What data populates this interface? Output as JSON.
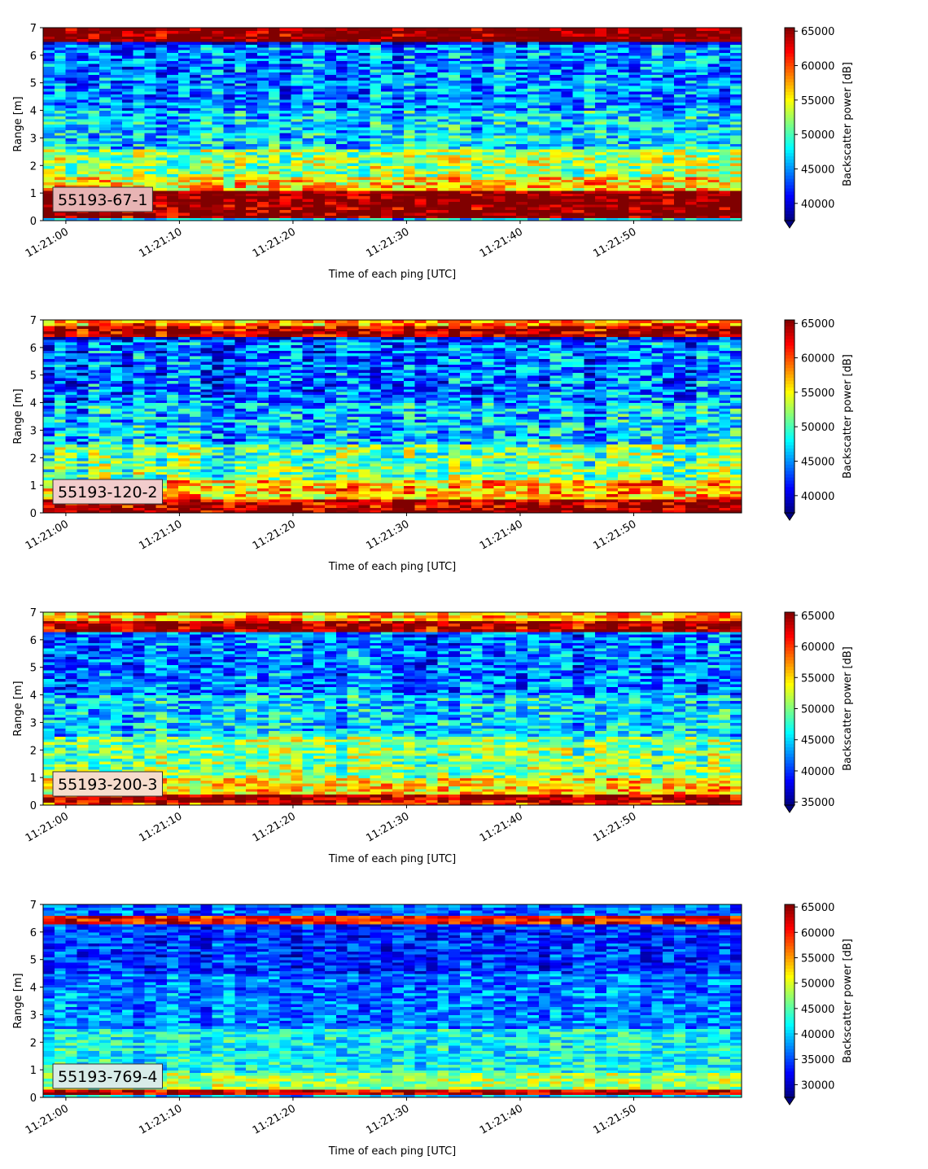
{
  "chart_data": [
    {
      "type": "heatmap",
      "label": "55193-67-1",
      "xlabel": "Time of each ping [UTC]",
      "ylabel": "Range [m]",
      "colorbar_label": "Backscatter power [dB]",
      "colormap": "jet",
      "x_ticks": [
        "11:21:00",
        "11:21:10",
        "11:21:20",
        "11:21:30",
        "11:21:40",
        "11:21:50"
      ],
      "x_tick_seconds": [
        0,
        10,
        20,
        30,
        40,
        50
      ],
      "x_range_seconds": [
        -2,
        59.5
      ],
      "y_ticks": [
        0,
        1,
        2,
        3,
        4,
        5,
        6,
        7
      ],
      "ylim": [
        0,
        7
      ],
      "colorbar_ticks": [
        40000,
        45000,
        50000,
        55000,
        60000,
        65000
      ],
      "clim": [
        37500,
        65500
      ],
      "profile": {
        "bands": [
          {
            "from": 0.0,
            "to": 0.15,
            "value": 47000
          },
          {
            "from": 0.15,
            "to": 1.1,
            "value": 66000
          },
          {
            "from": 1.1,
            "to": 1.6,
            "value": 56000
          },
          {
            "from": 1.6,
            "to": 2.6,
            "value": 52000
          },
          {
            "from": 2.6,
            "to": 4.0,
            "value": 47000
          },
          {
            "from": 4.0,
            "to": 6.4,
            "value": 44500
          },
          {
            "from": 6.4,
            "to": 6.5,
            "value": 40000
          },
          {
            "from": 6.5,
            "to": 7.0,
            "value": 66000
          }
        ],
        "noise": 6000
      },
      "legend_box_color": "#e8b4b4"
    },
    {
      "type": "heatmap",
      "label": "55193-120-2",
      "xlabel": "Time of each ping [UTC]",
      "ylabel": "Range [m]",
      "colorbar_label": "Backscatter power [dB]",
      "colormap": "jet",
      "x_ticks": [
        "11:21:00",
        "11:21:10",
        "11:21:20",
        "11:21:30",
        "11:21:40",
        "11:21:50"
      ],
      "x_tick_seconds": [
        0,
        10,
        20,
        30,
        40,
        50
      ],
      "x_range_seconds": [
        -2,
        59.5
      ],
      "y_ticks": [
        0,
        1,
        2,
        3,
        4,
        5,
        6,
        7
      ],
      "ylim": [
        0,
        7
      ],
      "colorbar_ticks": [
        40000,
        45000,
        50000,
        55000,
        60000,
        65000
      ],
      "clim": [
        37500,
        65500
      ],
      "profile": {
        "bands": [
          {
            "from": 0.0,
            "to": 0.15,
            "value": 66000
          },
          {
            "from": 0.15,
            "to": 0.55,
            "value": 64000
          },
          {
            "from": 0.55,
            "to": 1.2,
            "value": 57000
          },
          {
            "from": 1.2,
            "to": 2.5,
            "value": 51000
          },
          {
            "from": 2.5,
            "to": 4.0,
            "value": 46500
          },
          {
            "from": 4.0,
            "to": 6.3,
            "value": 44000
          },
          {
            "from": 6.3,
            "to": 6.4,
            "value": 40000
          },
          {
            "from": 6.4,
            "to": 6.8,
            "value": 64000
          },
          {
            "from": 6.8,
            "to": 7.0,
            "value": 58000
          }
        ],
        "noise": 6500
      },
      "legend_box_color": "#f2cccc"
    },
    {
      "type": "heatmap",
      "label": "55193-200-3",
      "xlabel": "Time of each ping [UTC]",
      "ylabel": "Range [m]",
      "colorbar_label": "Backscatter power [dB]",
      "colormap": "jet",
      "x_ticks": [
        "11:21:00",
        "11:21:10",
        "11:21:20",
        "11:21:30",
        "11:21:40",
        "11:21:50"
      ],
      "x_tick_seconds": [
        0,
        10,
        20,
        30,
        40,
        50
      ],
      "x_range_seconds": [
        -2,
        59.5
      ],
      "y_ticks": [
        0,
        1,
        2,
        3,
        4,
        5,
        6,
        7
      ],
      "ylim": [
        0,
        7
      ],
      "colorbar_ticks": [
        35000,
        40000,
        45000,
        50000,
        55000,
        60000,
        65000
      ],
      "clim": [
        34500,
        65500
      ],
      "profile": {
        "bands": [
          {
            "from": 0.0,
            "to": 0.15,
            "value": 60000
          },
          {
            "from": 0.15,
            "to": 0.4,
            "value": 64000
          },
          {
            "from": 0.4,
            "to": 1.0,
            "value": 55000
          },
          {
            "from": 1.0,
            "to": 2.5,
            "value": 50000
          },
          {
            "from": 2.5,
            "to": 4.0,
            "value": 45000
          },
          {
            "from": 4.0,
            "to": 6.3,
            "value": 42000
          },
          {
            "from": 6.3,
            "to": 6.35,
            "value": 40000
          },
          {
            "from": 6.35,
            "to": 6.7,
            "value": 64000
          },
          {
            "from": 6.7,
            "to": 7.0,
            "value": 56000
          }
        ],
        "noise": 6500
      },
      "legend_box_color": "#f6dccc"
    },
    {
      "type": "heatmap",
      "label": "55193-769-4",
      "xlabel": "Time of each ping [UTC]",
      "ylabel": "Range [m]",
      "colorbar_label": "Backscatter power [dB]",
      "colormap": "jet",
      "x_ticks": [
        "11:21:00",
        "11:21:10",
        "11:21:20",
        "11:21:30",
        "11:21:40",
        "11:21:50"
      ],
      "x_tick_seconds": [
        0,
        10,
        20,
        30,
        40,
        50
      ],
      "x_range_seconds": [
        -2,
        59.5
      ],
      "y_ticks": [
        0,
        1,
        2,
        3,
        4,
        5,
        6,
        7
      ],
      "ylim": [
        0,
        7
      ],
      "colorbar_ticks": [
        30000,
        35000,
        40000,
        45000,
        50000,
        55000,
        60000,
        65000
      ],
      "clim": [
        27500,
        65500
      ],
      "profile": {
        "bands": [
          {
            "from": 0.0,
            "to": 0.1,
            "value": 40000
          },
          {
            "from": 0.1,
            "to": 0.3,
            "value": 62000
          },
          {
            "from": 0.3,
            "to": 0.9,
            "value": 48000
          },
          {
            "from": 0.9,
            "to": 2.5,
            "value": 42000
          },
          {
            "from": 2.5,
            "to": 4.5,
            "value": 37000
          },
          {
            "from": 4.5,
            "to": 6.3,
            "value": 34000
          },
          {
            "from": 6.3,
            "to": 6.6,
            "value": 60000
          },
          {
            "from": 6.6,
            "to": 7.0,
            "value": 36000
          }
        ],
        "noise": 6000
      },
      "legend_box_color": "#d8ece8"
    }
  ]
}
